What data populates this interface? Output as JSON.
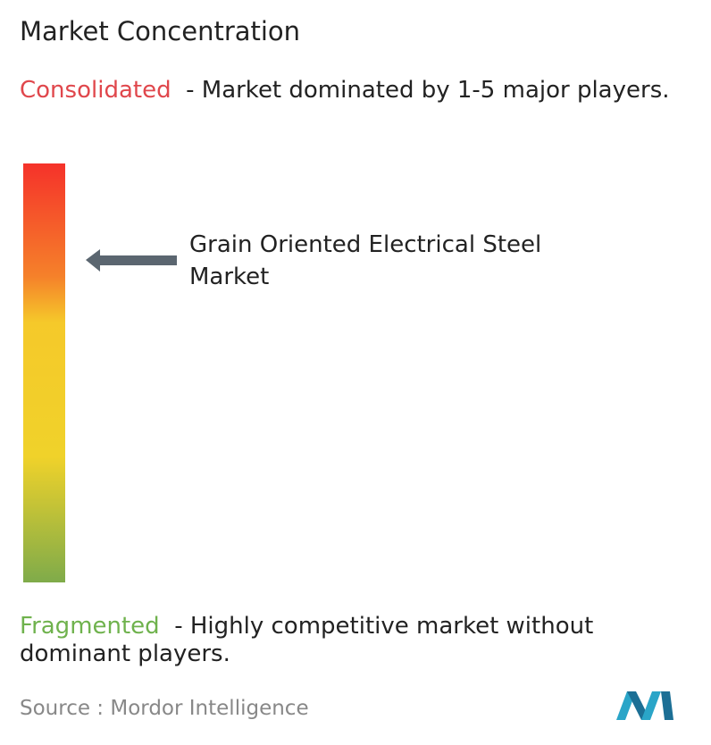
{
  "title": "Market Concentration",
  "consolidated": {
    "label": "Consolidated",
    "description": "- Market dominated by 1-5 major players."
  },
  "market": {
    "label": "Grain Oriented Electrical Steel Market"
  },
  "fragmented": {
    "label": "Fragmented",
    "description": "- Highly competitive market without dominant players."
  },
  "source": "Source :  Mordor Intelligence"
}
